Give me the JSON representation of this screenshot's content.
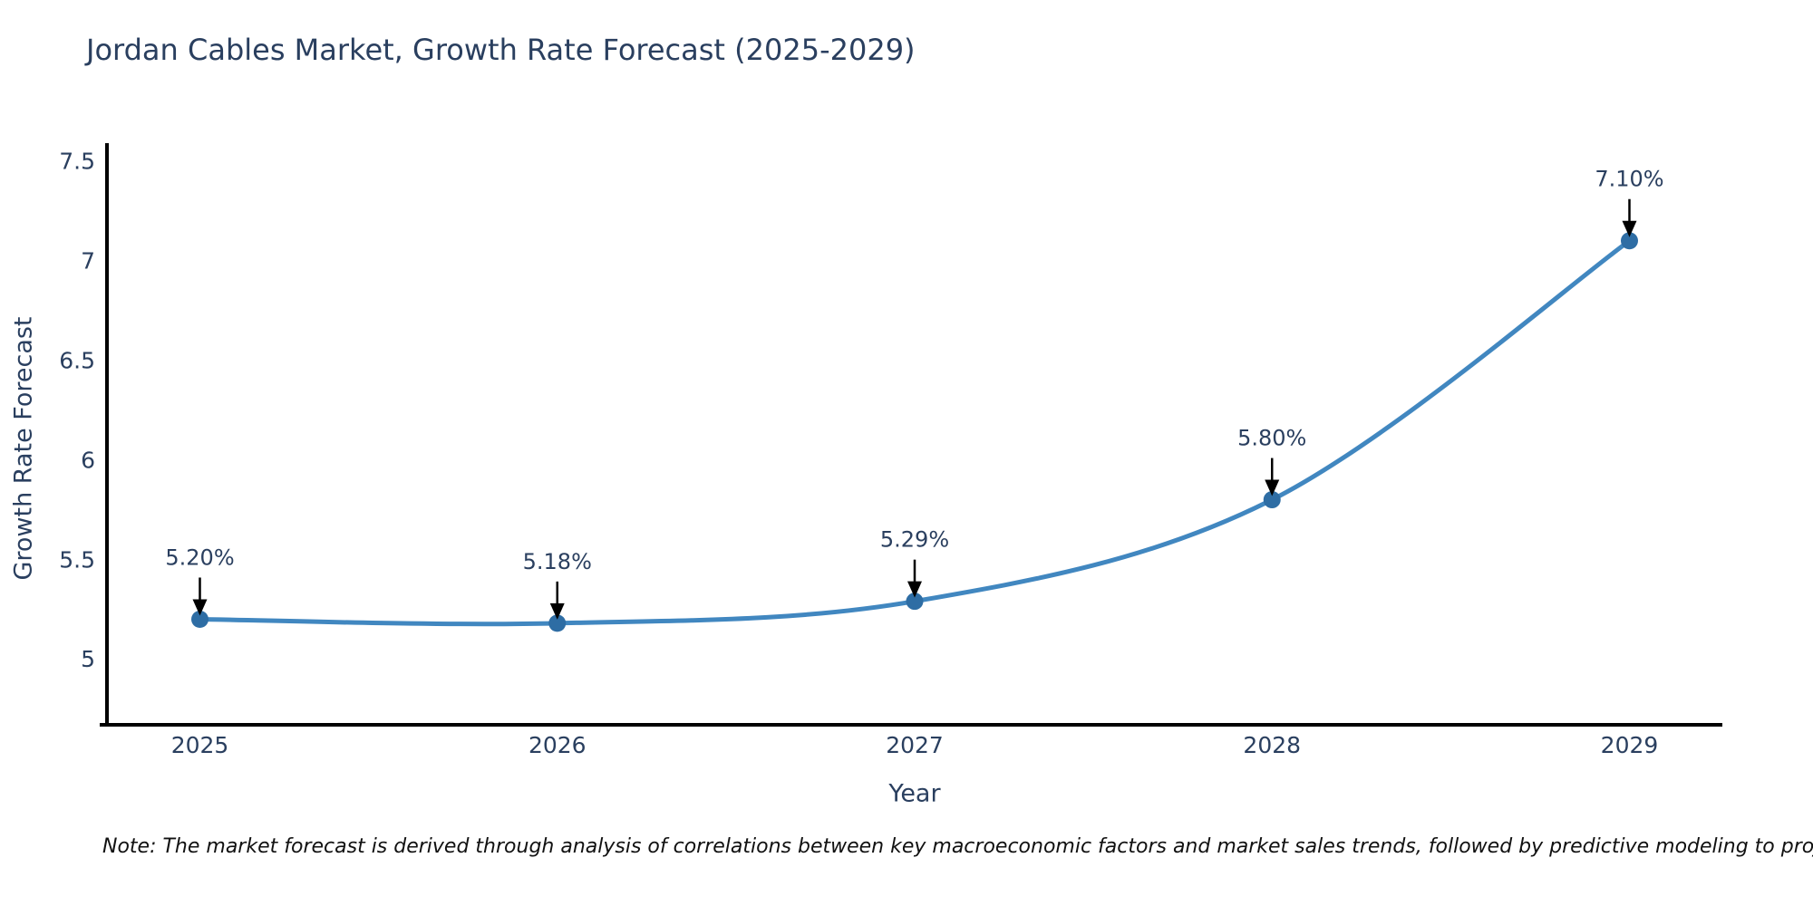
{
  "note": "Note: The market forecast is derived through analysis of correlations between key macroeconomic factors and market sales trends, followed by predictive modeling to project future sales",
  "chart_data": {
    "type": "line",
    "title": "Jordan Cables Market, Growth Rate Forecast (2025-2029)",
    "xlabel": "Year",
    "ylabel": "Growth Rate Forecast",
    "x": [
      2025,
      2026,
      2027,
      2028,
      2029
    ],
    "values": [
      5.2,
      5.18,
      5.29,
      5.8,
      7.1
    ],
    "point_labels": [
      "5.20%",
      "5.18%",
      "5.29%",
      "5.80%",
      "7.10%"
    ],
    "xtick_labels": [
      "2025",
      "2026",
      "2027",
      "2028",
      "2029"
    ],
    "yticks": [
      5,
      5.5,
      6,
      6.5,
      7,
      7.5
    ],
    "ytick_labels": [
      "5",
      "5.5",
      "6",
      "6.5",
      "7",
      "7.5"
    ],
    "xlim": [
      2024.74,
      2029.26
    ],
    "ylim": [
      4.67,
      7.59
    ],
    "grid": false,
    "legend": false,
    "line_shape": "spline",
    "line_color": "#4187c0",
    "marker_color": "#2e6da4",
    "axis_color": "#000000",
    "tick_text_color": "#2a3f5f",
    "annotation_text_color": "#2a3f5f",
    "annotation_arrow_color": "#000000"
  }
}
